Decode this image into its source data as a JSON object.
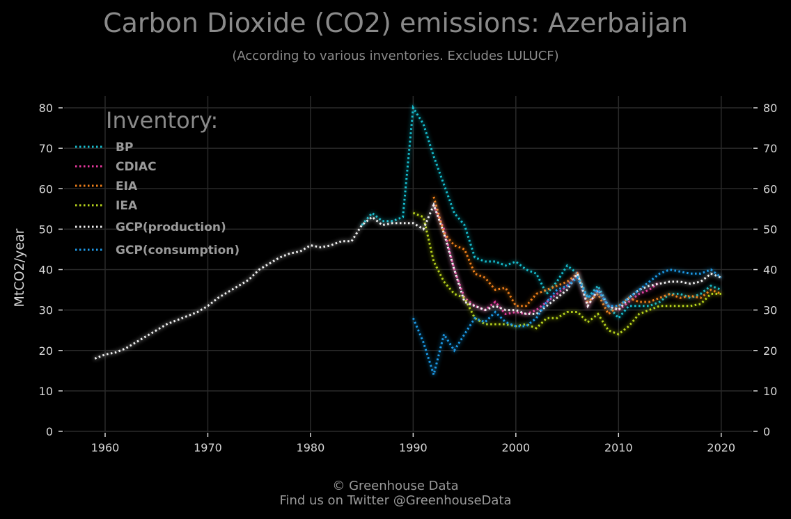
{
  "chart_data": {
    "type": "line",
    "title": "Carbon Dioxide (CO2) emissions: Azerbaijan",
    "subtitle": "(According to various inventories. Excludes LULUCF)",
    "ylabel": "MtCO2/year",
    "xlabel": "",
    "xlim": [
      1956,
      2023
    ],
    "ylim": [
      0,
      83
    ],
    "x_ticks": [
      1960,
      1970,
      1980,
      1990,
      2000,
      2010,
      2020
    ],
    "y_ticks": [
      0,
      10,
      20,
      30,
      40,
      50,
      60,
      70,
      80
    ],
    "grid": true,
    "legend_title": "Inventory:",
    "legend_position": "top-left",
    "line_style": "dotted",
    "series": [
      {
        "name": "BP",
        "color": "#17becf",
        "points": [
          [
            1985,
            51
          ],
          [
            1986,
            54
          ],
          [
            1987,
            52
          ],
          [
            1988,
            52
          ],
          [
            1989,
            53
          ],
          [
            1990,
            80
          ],
          [
            1991,
            76
          ],
          [
            1992,
            68
          ],
          [
            1993,
            61
          ],
          [
            1994,
            54
          ],
          [
            1995,
            51
          ],
          [
            1996,
            43
          ],
          [
            1997,
            42
          ],
          [
            1998,
            42
          ],
          [
            1999,
            41
          ],
          [
            2000,
            42
          ],
          [
            2001,
            40
          ],
          [
            2002,
            39
          ],
          [
            2003,
            34
          ],
          [
            2004,
            37
          ],
          [
            2005,
            41
          ],
          [
            2006,
            39
          ],
          [
            2007,
            33
          ],
          [
            2008,
            36
          ],
          [
            2009,
            31
          ],
          [
            2010,
            28
          ],
          [
            2011,
            31
          ],
          [
            2012,
            31
          ],
          [
            2013,
            31
          ],
          [
            2014,
            32
          ],
          [
            2015,
            34
          ],
          [
            2016,
            34
          ],
          [
            2017,
            33
          ],
          [
            2018,
            34
          ],
          [
            2019,
            36
          ],
          [
            2020,
            35
          ]
        ]
      },
      {
        "name": "CDIAC",
        "color": "#e8399e",
        "points": [
          [
            1992,
            56
          ],
          [
            1993,
            50
          ],
          [
            1994,
            40
          ],
          [
            1995,
            33
          ],
          [
            1996,
            31
          ],
          [
            1997,
            30
          ],
          [
            1998,
            32
          ],
          [
            1999,
            29
          ],
          [
            2000,
            29.5
          ],
          [
            2001,
            29
          ],
          [
            2002,
            30
          ],
          [
            2003,
            32
          ],
          [
            2004,
            34
          ],
          [
            2005,
            36
          ],
          [
            2006,
            39
          ],
          [
            2007,
            31
          ],
          [
            2008,
            35
          ],
          [
            2009,
            31
          ],
          [
            2010,
            30
          ],
          [
            2011,
            32
          ],
          [
            2012,
            34
          ],
          [
            2013,
            35
          ],
          [
            2014,
            37
          ]
        ]
      },
      {
        "name": "EIA",
        "color": "#f07f1a",
        "points": [
          [
            1992,
            58
          ],
          [
            1993,
            49
          ],
          [
            1994,
            46
          ],
          [
            1995,
            45
          ],
          [
            1996,
            39
          ],
          [
            1997,
            38
          ],
          [
            1998,
            35
          ],
          [
            1999,
            35.5
          ],
          [
            2000,
            31
          ],
          [
            2001,
            31
          ],
          [
            2002,
            34
          ],
          [
            2003,
            35
          ],
          [
            2004,
            36
          ],
          [
            2005,
            37
          ],
          [
            2006,
            39
          ],
          [
            2007,
            32
          ],
          [
            2008,
            34
          ],
          [
            2009,
            29
          ],
          [
            2010,
            31
          ],
          [
            2011,
            33
          ],
          [
            2012,
            32
          ],
          [
            2013,
            32
          ],
          [
            2014,
            33
          ],
          [
            2015,
            34
          ],
          [
            2016,
            33
          ],
          [
            2017,
            33.5
          ],
          [
            2018,
            33
          ],
          [
            2019,
            35
          ],
          [
            2020,
            34
          ]
        ]
      },
      {
        "name": "IEA",
        "color": "#b8d41c",
        "points": [
          [
            1990,
            54
          ],
          [
            1991,
            53
          ],
          [
            1992,
            42
          ],
          [
            1993,
            37
          ],
          [
            1994,
            34
          ],
          [
            1995,
            33
          ],
          [
            1996,
            28
          ],
          [
            1997,
            26.5
          ],
          [
            1998,
            26.5
          ],
          [
            1999,
            26.5
          ],
          [
            2000,
            26
          ],
          [
            2001,
            26.5
          ],
          [
            2002,
            25.5
          ],
          [
            2003,
            28
          ],
          [
            2004,
            28
          ],
          [
            2005,
            29.5
          ],
          [
            2006,
            29.5
          ],
          [
            2007,
            27
          ],
          [
            2008,
            29
          ],
          [
            2009,
            25
          ],
          [
            2010,
            24
          ],
          [
            2011,
            26
          ],
          [
            2012,
            29
          ],
          [
            2013,
            30
          ],
          [
            2014,
            31
          ],
          [
            2015,
            31
          ],
          [
            2016,
            31
          ],
          [
            2017,
            31
          ],
          [
            2018,
            31.5
          ],
          [
            2019,
            34
          ],
          [
            2020,
            34
          ]
        ]
      },
      {
        "name": "GCP(production)",
        "color": "#f2f2f2",
        "points": [
          [
            1959,
            18
          ],
          [
            1960,
            19
          ],
          [
            1961,
            19.5
          ],
          [
            1962,
            20.5
          ],
          [
            1963,
            22
          ],
          [
            1964,
            23.5
          ],
          [
            1965,
            25
          ],
          [
            1966,
            26.5
          ],
          [
            1967,
            27.5
          ],
          [
            1968,
            28.5
          ],
          [
            1969,
            29.5
          ],
          [
            1970,
            31
          ],
          [
            1971,
            33
          ],
          [
            1972,
            34.5
          ],
          [
            1973,
            36
          ],
          [
            1974,
            37.5
          ],
          [
            1975,
            40
          ],
          [
            1976,
            41.5
          ],
          [
            1977,
            43
          ],
          [
            1978,
            44
          ],
          [
            1979,
            44.5
          ],
          [
            1980,
            46
          ],
          [
            1981,
            45.5
          ],
          [
            1982,
            46
          ],
          [
            1983,
            47
          ],
          [
            1984,
            47
          ],
          [
            1985,
            51
          ],
          [
            1986,
            53
          ],
          [
            1987,
            51
          ],
          [
            1988,
            51.5
          ],
          [
            1989,
            51.5
          ],
          [
            1990,
            51.5
          ],
          [
            1991,
            50
          ],
          [
            1992,
            56
          ],
          [
            1993,
            49
          ],
          [
            1994,
            40
          ],
          [
            1995,
            32
          ],
          [
            1996,
            31
          ],
          [
            1997,
            30
          ],
          [
            1998,
            31
          ],
          [
            1999,
            30
          ],
          [
            2000,
            30
          ],
          [
            2001,
            29
          ],
          [
            2002,
            29
          ],
          [
            2003,
            31
          ],
          [
            2004,
            33
          ],
          [
            2005,
            35
          ],
          [
            2006,
            39
          ],
          [
            2007,
            31
          ],
          [
            2008,
            35
          ],
          [
            2009,
            31
          ],
          [
            2010,
            30
          ],
          [
            2011,
            33
          ],
          [
            2012,
            35
          ],
          [
            2013,
            36
          ],
          [
            2014,
            36.5
          ],
          [
            2015,
            37
          ],
          [
            2016,
            37
          ],
          [
            2017,
            36.5
          ],
          [
            2018,
            37
          ],
          [
            2019,
            39
          ],
          [
            2020,
            38
          ]
        ]
      },
      {
        "name": "GCP(consumption)",
        "color": "#1f9ae8",
        "points": [
          [
            1990,
            28
          ],
          [
            1991,
            22
          ],
          [
            1992,
            14
          ],
          [
            1993,
            24
          ],
          [
            1994,
            20
          ],
          [
            1995,
            24
          ],
          [
            1996,
            28
          ],
          [
            1997,
            27
          ],
          [
            1998,
            29.5
          ],
          [
            1999,
            27
          ],
          [
            2000,
            26
          ],
          [
            2001,
            26
          ],
          [
            2002,
            28
          ],
          [
            2003,
            32
          ],
          [
            2004,
            35
          ],
          [
            2005,
            36
          ],
          [
            2006,
            38
          ],
          [
            2007,
            33
          ],
          [
            2008,
            35
          ],
          [
            2009,
            31
          ],
          [
            2010,
            31
          ],
          [
            2011,
            33
          ],
          [
            2012,
            35
          ],
          [
            2013,
            37
          ],
          [
            2014,
            39
          ],
          [
            2015,
            40
          ],
          [
            2016,
            39.5
          ],
          [
            2017,
            39
          ],
          [
            2018,
            39
          ],
          [
            2019,
            40
          ],
          [
            2020,
            38
          ]
        ]
      }
    ]
  },
  "footer": {
    "line1": "© Greenhouse Data",
    "line2": "Find us on Twitter @GreenhouseData"
  }
}
